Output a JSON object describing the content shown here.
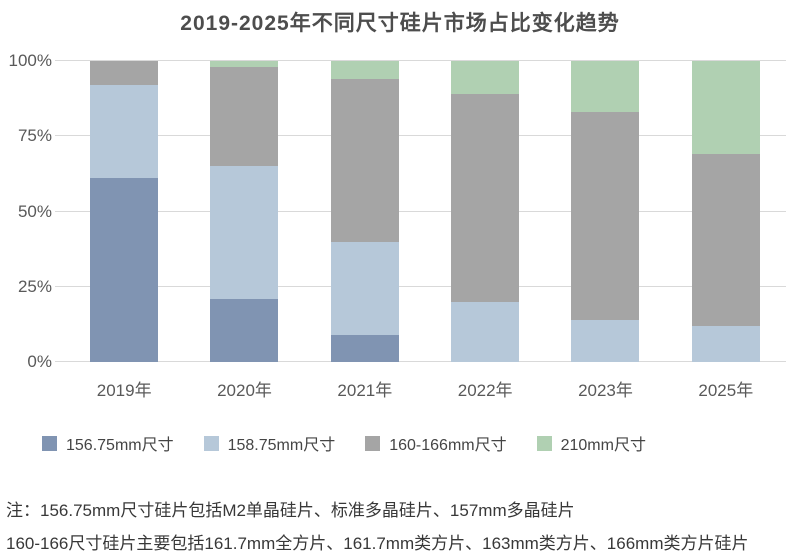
{
  "title": "2019-2025年不同尺寸硅片市场占比变化趋势",
  "chart_data": {
    "type": "bar",
    "stacked": true,
    "title": "2019-2025年不同尺寸硅片市场占比变化趋势",
    "categories": [
      "2019年",
      "2020年",
      "2021年",
      "2022年",
      "2023年",
      "2025年"
    ],
    "series": [
      {
        "name": "156.75mm尺寸",
        "color": "#8094b2",
        "values": [
          61,
          21,
          9,
          0,
          0,
          0
        ]
      },
      {
        "name": "158.75mm尺寸",
        "color": "#b6c8d9",
        "values": [
          31,
          44,
          31,
          20,
          14,
          12
        ]
      },
      {
        "name": "160-166mm尺寸",
        "color": "#a5a5a5",
        "values": [
          8,
          33,
          54,
          69,
          69,
          57
        ]
      },
      {
        "name": "210mm尺寸",
        "color": "#b0d0b2",
        "values": [
          0,
          2,
          6,
          11,
          17,
          31
        ]
      }
    ],
    "y_ticks": [
      {
        "label": "0%",
        "value": 0
      },
      {
        "label": "25%",
        "value": 25
      },
      {
        "label": "50%",
        "value": 50
      },
      {
        "label": "75%",
        "value": 75
      },
      {
        "label": "100%",
        "value": 100
      }
    ],
    "ylim": [
      0,
      100
    ],
    "unit": "percent",
    "grid": true,
    "legend_position": "bottom"
  },
  "notes": {
    "line1": "注：156.75mm尺寸硅片包括M2单晶硅片、标准多晶硅片、157mm多晶硅片",
    "line2": "160-166尺寸硅片主要包括161.7mm全方片、161.7mm类方片、163mm类方片、166mm类方片硅片"
  },
  "colors": {
    "background": "#ffffff",
    "gridline": "#d9d9d9",
    "title_text": "#4d4d4d",
    "axis_text": "#595959",
    "legend_text": "#454545",
    "note_text": "#383838"
  }
}
